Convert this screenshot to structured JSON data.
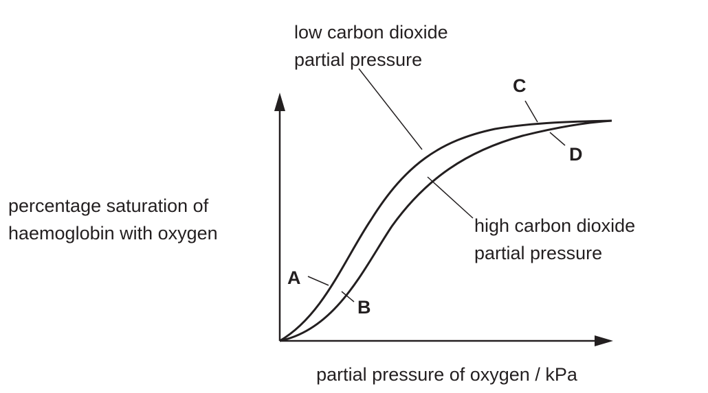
{
  "y_axis_label": [
    "percentage saturation of",
    "haemoglobin with oxygen"
  ],
  "x_axis_label": "partial pressure of oxygen / kPa",
  "curves": [
    {
      "label": [
        "low carbon dioxide",
        "partial pressure"
      ]
    },
    {
      "label": [
        "high carbon dioxide",
        "partial pressure"
      ]
    }
  ],
  "points": [
    "A",
    "B",
    "C",
    "D"
  ]
}
